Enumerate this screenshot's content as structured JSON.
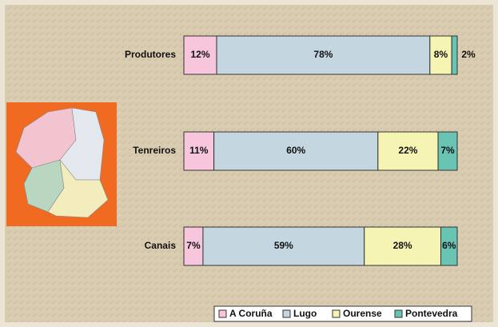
{
  "chart_data": {
    "type": "stacked-bar-horizontal",
    "categories": [
      "Produtores",
      "Tenreiros",
      "Canais"
    ],
    "series": [
      {
        "name": "A Coruña",
        "color": "#f7c6dd",
        "values": [
          12,
          11,
          7
        ],
        "value_labels": [
          "12%",
          "11%",
          "7%"
        ]
      },
      {
        "name": "Lugo",
        "color": "#c4d6df",
        "values": [
          78,
          60,
          59
        ],
        "value_labels": [
          "78%",
          "60%",
          "59%"
        ]
      },
      {
        "name": "Ourense",
        "color": "#f6f4b2",
        "values": [
          8,
          22,
          28
        ],
        "value_labels": [
          "8%",
          "22%",
          "28%"
        ]
      },
      {
        "name": "Pontevedra",
        "color": "#6ac4b4",
        "values": [
          2,
          7,
          6
        ],
        "value_labels": [
          "2%",
          "7%",
          "6%"
        ]
      }
    ],
    "legend": "bottom-right"
  }
}
